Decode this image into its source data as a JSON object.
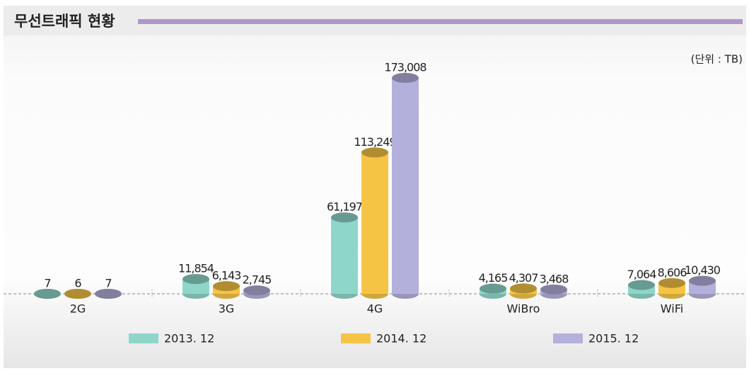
{
  "chart_data": {
    "type": "bar",
    "title": "무선트래픽 현황",
    "unit_note": "(단위 : TB)",
    "categories": [
      "2G",
      "3G",
      "4G",
      "WiBro",
      "WiFi"
    ],
    "series": [
      {
        "name": "2013. 12",
        "color": "#8fd6ca",
        "values": [
          7,
          11854,
          61197,
          4165,
          7064
        ],
        "value_labels": [
          "7",
          "11,854",
          "61,197",
          "4,165",
          "7,064"
        ]
      },
      {
        "name": "2014. 12",
        "color": "#f6c445",
        "values": [
          6,
          6143,
          113249,
          4307,
          8606
        ],
        "value_labels": [
          "6",
          "6,143",
          "113,249",
          "4,307",
          "8,606"
        ]
      },
      {
        "name": "2015. 12",
        "color": "#b4b0dc",
        "values": [
          7,
          2745,
          173008,
          3468,
          10430
        ],
        "value_labels": [
          "7",
          "2,745",
          "173,008",
          "3,468",
          "10,430"
        ]
      }
    ]
  }
}
